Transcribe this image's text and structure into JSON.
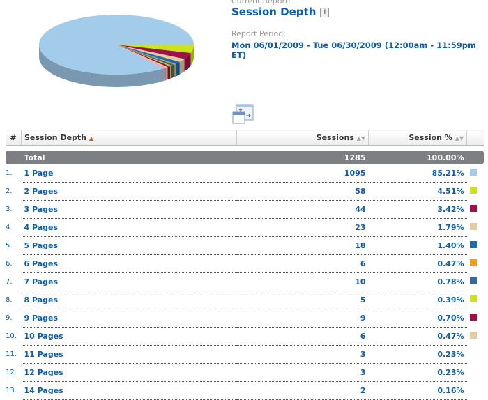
{
  "header": {
    "current_report_label": "Current Report:",
    "report_title": "Session Depth",
    "info_icon": "i",
    "period_label": "Report Period:",
    "period": "Mon 06/01/2009 - Tue 06/30/2009  (12:00am - 11:59pm ET)"
  },
  "table": {
    "columns": [
      "#",
      "Session Depth",
      "Sessions",
      "Session %"
    ],
    "total": {
      "label": "Total",
      "sessions": "1285",
      "percent": "100.00%"
    },
    "rows": [
      {
        "n": "1.",
        "label": "1 Page",
        "sessions": "1095",
        "percent": "85.21%",
        "color": "#a3cbea"
      },
      {
        "n": "2.",
        "label": "2 Pages",
        "sessions": "58",
        "percent": "4.51%",
        "color": "#cde21f"
      },
      {
        "n": "3.",
        "label": "3 Pages",
        "sessions": "44",
        "percent": "3.42%",
        "color": "#a0114a"
      },
      {
        "n": "4.",
        "label": "4 Pages",
        "sessions": "23",
        "percent": "1.79%",
        "color": "#e3cba2"
      },
      {
        "n": "5.",
        "label": "5 Pages",
        "sessions": "18",
        "percent": "1.40%",
        "color": "#1b6ca8"
      },
      {
        "n": "6.",
        "label": "6 Pages",
        "sessions": "6",
        "percent": "0.47%",
        "color": "#f29b1d"
      },
      {
        "n": "7.",
        "label": "7 Pages",
        "sessions": "10",
        "percent": "0.78%",
        "color": "#356a9e"
      },
      {
        "n": "8.",
        "label": "8 Pages",
        "sessions": "5",
        "percent": "0.39%",
        "color": "#cde21f"
      },
      {
        "n": "9.",
        "label": "9 Pages",
        "sessions": "9",
        "percent": "0.70%",
        "color": "#a0114a"
      },
      {
        "n": "10.",
        "label": "10 Pages",
        "sessions": "6",
        "percent": "0.47%",
        "color": "#e3cba2"
      },
      {
        "n": "11.",
        "label": "11 Pages",
        "sessions": "3",
        "percent": "0.23%",
        "color": ""
      },
      {
        "n": "12.",
        "label": "12 Pages",
        "sessions": "3",
        "percent": "0.23%",
        "color": ""
      },
      {
        "n": "13.",
        "label": "14 Pages",
        "sessions": "2",
        "percent": "0.16%",
        "color": ""
      }
    ]
  }
}
